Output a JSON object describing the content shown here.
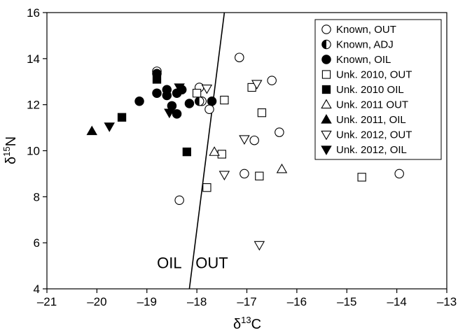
{
  "chart_data": {
    "type": "scatter",
    "xlabel_main": "δ",
    "xlabel_sup": "13",
    "xlabel_tail": "C",
    "ylabel_main": "δ",
    "ylabel_sup": "15",
    "ylabel_tail": "N",
    "xlim": [
      -21,
      -13
    ],
    "ylim": [
      4,
      16
    ],
    "xticks": [
      -21,
      -20,
      -19,
      -18,
      -17,
      -16,
      -15,
      -14,
      -13
    ],
    "yticks": [
      4,
      6,
      8,
      10,
      12,
      14,
      16
    ],
    "xtick_labels": [
      "–21",
      "–20",
      "–19",
      "–18",
      "–17",
      "–16",
      "–15",
      "–14",
      "–13"
    ],
    "ytick_labels": [
      "4",
      "6",
      "8",
      "10",
      "12",
      "14",
      "16"
    ],
    "grid": false,
    "legend_position": "top-right",
    "divider_line": {
      "x": [
        -18.15,
        -17.45
      ],
      "y": [
        4,
        16
      ]
    },
    "region_labels": [
      {
        "text": "OIL",
        "x": -18.55,
        "y": 4.9
      },
      {
        "text": "OUT",
        "x": -17.7,
        "y": 4.9
      }
    ],
    "series": [
      {
        "name": "Known, OUT",
        "marker": "circle-open",
        "points": [
          [
            -17.15,
            14.05
          ],
          [
            -16.5,
            13.05
          ],
          [
            -17.95,
            12.75
          ],
          [
            -17.9,
            12.15
          ],
          [
            -17.75,
            11.8
          ],
          [
            -16.85,
            10.45
          ],
          [
            -16.35,
            10.8
          ],
          [
            -17.05,
            9.0
          ],
          [
            -13.95,
            9.0
          ],
          [
            -18.35,
            7.85
          ],
          [
            -18.8,
            13.45
          ]
        ]
      },
      {
        "name": "Known, ADJ",
        "marker": "circle-half",
        "points": [
          [
            -17.95,
            12.15
          ]
        ]
      },
      {
        "name": "Known, OIL",
        "marker": "circle-filled",
        "points": [
          [
            -19.15,
            12.15
          ],
          [
            -18.8,
            13.35
          ],
          [
            -18.8,
            12.5
          ],
          [
            -18.6,
            12.65
          ],
          [
            -18.6,
            12.4
          ],
          [
            -18.4,
            12.5
          ],
          [
            -18.4,
            11.6
          ],
          [
            -18.5,
            11.95
          ],
          [
            -18.15,
            12.05
          ],
          [
            -17.7,
            12.15
          ],
          [
            -18.3,
            12.65
          ]
        ]
      },
      {
        "name": "Unk. 2010, OUT",
        "marker": "square-open",
        "points": [
          [
            -18.0,
            12.5
          ],
          [
            -17.45,
            12.2
          ],
          [
            -16.9,
            12.75
          ],
          [
            -16.7,
            11.65
          ],
          [
            -17.5,
            9.85
          ],
          [
            -17.8,
            8.4
          ],
          [
            -16.75,
            8.9
          ],
          [
            -14.7,
            8.85
          ]
        ]
      },
      {
        "name": "Unk. 2010 OIL",
        "marker": "square-filled",
        "points": [
          [
            -19.5,
            11.45
          ],
          [
            -18.8,
            13.1
          ],
          [
            -18.2,
            9.95
          ]
        ]
      },
      {
        "name": "Unk. 2011 OUT",
        "marker": "triangle-up-open",
        "points": [
          [
            -17.65,
            9.95
          ],
          [
            -16.3,
            9.2
          ]
        ]
      },
      {
        "name": "Unk. 2011, OIL",
        "marker": "triangle-up-filled",
        "points": [
          [
            -20.1,
            10.85
          ]
        ]
      },
      {
        "name": "Unk. 2012, OUT",
        "marker": "triangle-down-open",
        "points": [
          [
            -17.8,
            12.7
          ],
          [
            -16.8,
            12.9
          ],
          [
            -17.05,
            10.5
          ],
          [
            -17.45,
            8.95
          ],
          [
            -16.75,
            5.9
          ]
        ]
      },
      {
        "name": "Unk. 2012, OIL",
        "marker": "triangle-down-filled",
        "points": [
          [
            -19.75,
            11.05
          ],
          [
            -18.35,
            12.75
          ],
          [
            -18.55,
            11.65
          ]
        ]
      }
    ]
  }
}
